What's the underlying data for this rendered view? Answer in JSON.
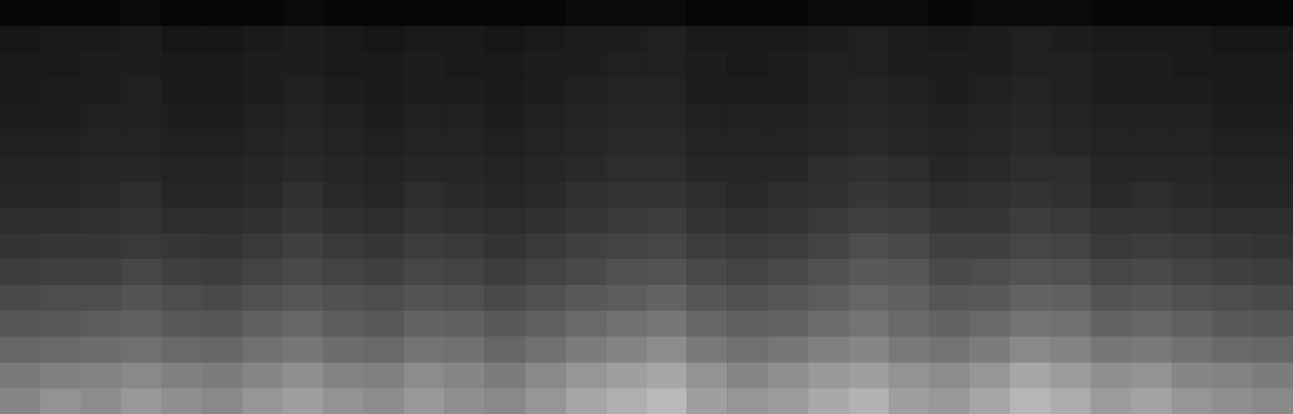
{
  "chart_data": {
    "type": "heatmap",
    "tick_labels": false,
    "zlim": [
      0,
      80
    ],
    "cells": [
      [
        42,
        46,
        44,
        48,
        45,
        43,
        47,
        50,
        46,
        44,
        48,
        45,
        43,
        47,
        52,
        55,
        58,
        50,
        47,
        49,
        53,
        56,
        50,
        48,
        52,
        57,
        54,
        49,
        51,
        47,
        45,
        43
      ],
      [
        38,
        40,
        41,
        43,
        40,
        39,
        42,
        45,
        41,
        40,
        44,
        42,
        39,
        43,
        47,
        50,
        52,
        46,
        42,
        45,
        48,
        50,
        46,
        44,
        47,
        52,
        49,
        45,
        46,
        42,
        41,
        39
      ],
      [
        32,
        33,
        34,
        35,
        33,
        32,
        35,
        37,
        34,
        33,
        36,
        35,
        32,
        35,
        39,
        41,
        44,
        38,
        35,
        37,
        40,
        42,
        38,
        36,
        39,
        43,
        41,
        37,
        38,
        35,
        33,
        32
      ],
      [
        27,
        28,
        29,
        30,
        28,
        27,
        30,
        32,
        29,
        28,
        31,
        30,
        28,
        30,
        33,
        35,
        37,
        32,
        30,
        31,
        34,
        36,
        33,
        31,
        33,
        36,
        35,
        31,
        32,
        30,
        28,
        27
      ],
      [
        23,
        24,
        24,
        26,
        24,
        23,
        25,
        27,
        25,
        24,
        26,
        25,
        23,
        25,
        28,
        29,
        31,
        27,
        25,
        27,
        29,
        32,
        30,
        27,
        28,
        31,
        30,
        26,
        27,
        25,
        24,
        23
      ],
      [
        19,
        20,
        20,
        22,
        20,
        19,
        21,
        23,
        21,
        20,
        22,
        21,
        19,
        21,
        23,
        25,
        26,
        23,
        21,
        23,
        25,
        28,
        27,
        23,
        24,
        26,
        25,
        22,
        23,
        21,
        20,
        19
      ],
      [
        16,
        17,
        17,
        18,
        17,
        16,
        18,
        20,
        18,
        17,
        19,
        18,
        16,
        18,
        20,
        21,
        22,
        19,
        18,
        19,
        21,
        24,
        23,
        20,
        20,
        22,
        21,
        18,
        19,
        18,
        17,
        16
      ],
      [
        14,
        14,
        15,
        16,
        14,
        14,
        15,
        17,
        15,
        14,
        16,
        15,
        14,
        15,
        17,
        18,
        19,
        16,
        15,
        16,
        18,
        20,
        19,
        17,
        17,
        19,
        18,
        16,
        16,
        15,
        14,
        14
      ],
      [
        12,
        12,
        13,
        14,
        12,
        12,
        13,
        15,
        13,
        12,
        14,
        13,
        12,
        13,
        15,
        16,
        16,
        14,
        13,
        14,
        15,
        17,
        16,
        14,
        15,
        16,
        15,
        13,
        14,
        13,
        12,
        12
      ],
      [
        11,
        11,
        12,
        12,
        11,
        11,
        12,
        13,
        12,
        11,
        12,
        12,
        11,
        12,
        13,
        14,
        14,
        12,
        12,
        12,
        14,
        15,
        14,
        12,
        13,
        14,
        14,
        12,
        12,
        12,
        11,
        11
      ],
      [
        10,
        10,
        11,
        11,
        10,
        10,
        11,
        12,
        11,
        10,
        11,
        11,
        10,
        11,
        12,
        13,
        13,
        11,
        11,
        11,
        12,
        13,
        12,
        11,
        12,
        13,
        12,
        11,
        11,
        11,
        10,
        10
      ],
      [
        9,
        9,
        10,
        10,
        9,
        9,
        10,
        11,
        10,
        9,
        10,
        10,
        9,
        10,
        11,
        12,
        12,
        10,
        10,
        10,
        11,
        12,
        11,
        10,
        11,
        12,
        11,
        10,
        10,
        10,
        9,
        9
      ],
      [
        8,
        9,
        9,
        10,
        8,
        8,
        9,
        10,
        9,
        8,
        9,
        9,
        8,
        9,
        10,
        11,
        11,
        9,
        9,
        9,
        10,
        11,
        10,
        9,
        10,
        11,
        10,
        9,
        9,
        9,
        8,
        8
      ],
      [
        8,
        8,
        9,
        9,
        8,
        8,
        9,
        9,
        8,
        8,
        9,
        8,
        8,
        9,
        9,
        10,
        10,
        9,
        8,
        9,
        10,
        10,
        9,
        9,
        9,
        10,
        10,
        9,
        9,
        8,
        8,
        8
      ],
      [
        7,
        8,
        8,
        9,
        7,
        7,
        8,
        9,
        8,
        7,
        8,
        8,
        7,
        8,
        9,
        9,
        10,
        8,
        8,
        8,
        9,
        10,
        9,
        8,
        9,
        10,
        9,
        8,
        8,
        8,
        7,
        7
      ],
      [
        2,
        2,
        2,
        3,
        2,
        2,
        2,
        3,
        2,
        2,
        2,
        2,
        2,
        2,
        3,
        3,
        3,
        2,
        2,
        2,
        3,
        3,
        3,
        2,
        3,
        3,
        3,
        2,
        2,
        2,
        2,
        2
      ]
    ]
  }
}
